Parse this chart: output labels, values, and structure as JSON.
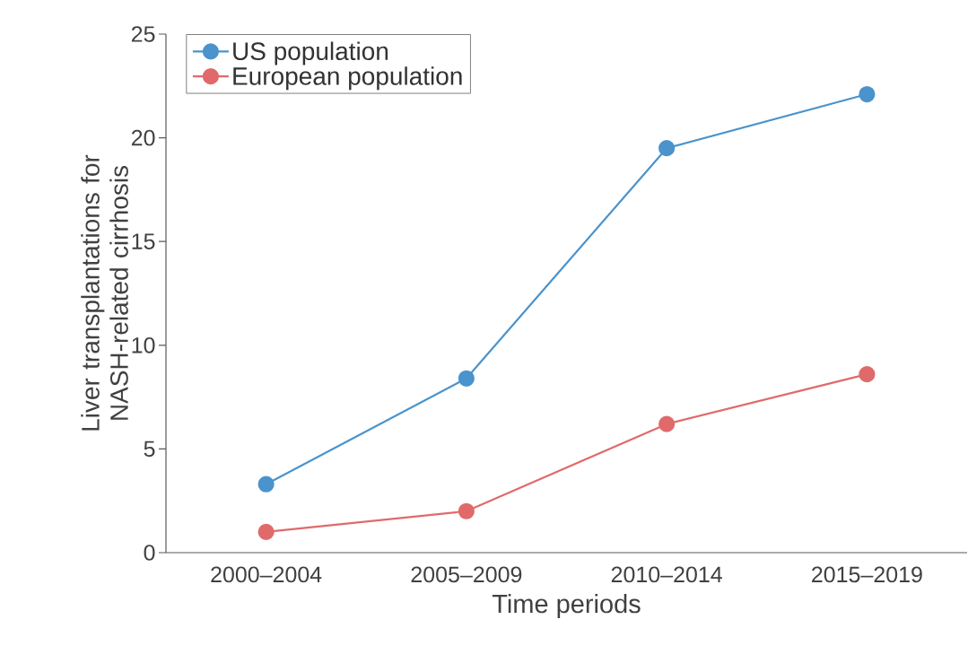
{
  "chart_data": {
    "type": "line",
    "xlabel": "Time periods",
    "ylabel": "Liver transplantations for NASH-related cirrhosis",
    "categories": [
      "2000–2004",
      "2005–2009",
      "2010–2014",
      "2015–2019"
    ],
    "series": [
      {
        "name": "US population",
        "color": "#4a93cc",
        "values": [
          3.3,
          8.4,
          19.5,
          22.1
        ]
      },
      {
        "name": "European population",
        "color": "#e06a6a",
        "values": [
          1.0,
          2.0,
          6.2,
          8.6
        ]
      }
    ],
    "ylim": [
      0,
      25
    ],
    "yticks": [
      0,
      5,
      10,
      15,
      20,
      25
    ],
    "legend": "top left",
    "marker": "circle",
    "line_style": "solid",
    "grid": false
  }
}
